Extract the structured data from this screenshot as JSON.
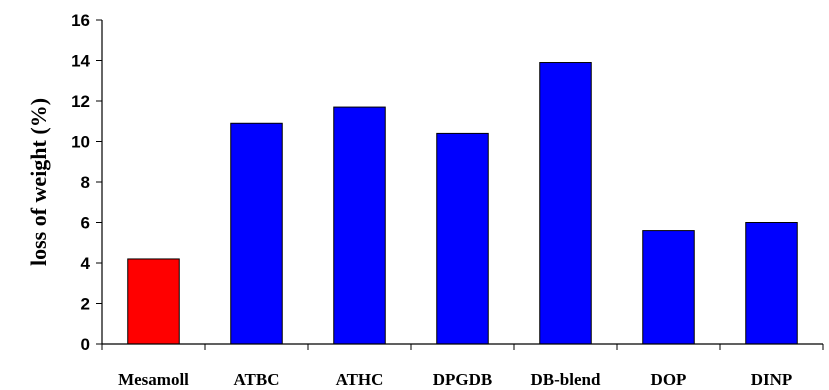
{
  "chart_data": {
    "type": "bar",
    "title": "",
    "xlabel": "",
    "ylabel": "loss of weight (%)",
    "ylim": [
      0,
      16
    ],
    "yticks": [
      0,
      2,
      4,
      6,
      8,
      10,
      12,
      14,
      16
    ],
    "grid": false,
    "legend": "none",
    "categories": [
      "Mesamoll",
      "ATBC",
      "ATHC",
      "DPGDB",
      "DB-blend",
      "DOP",
      "DINP"
    ],
    "values": [
      4.2,
      10.9,
      11.7,
      10.4,
      13.9,
      5.6,
      6.0
    ],
    "colors": [
      "#ff0000",
      "#0000ff",
      "#0000ff",
      "#0000ff",
      "#0000ff",
      "#0000ff",
      "#0000ff"
    ]
  }
}
